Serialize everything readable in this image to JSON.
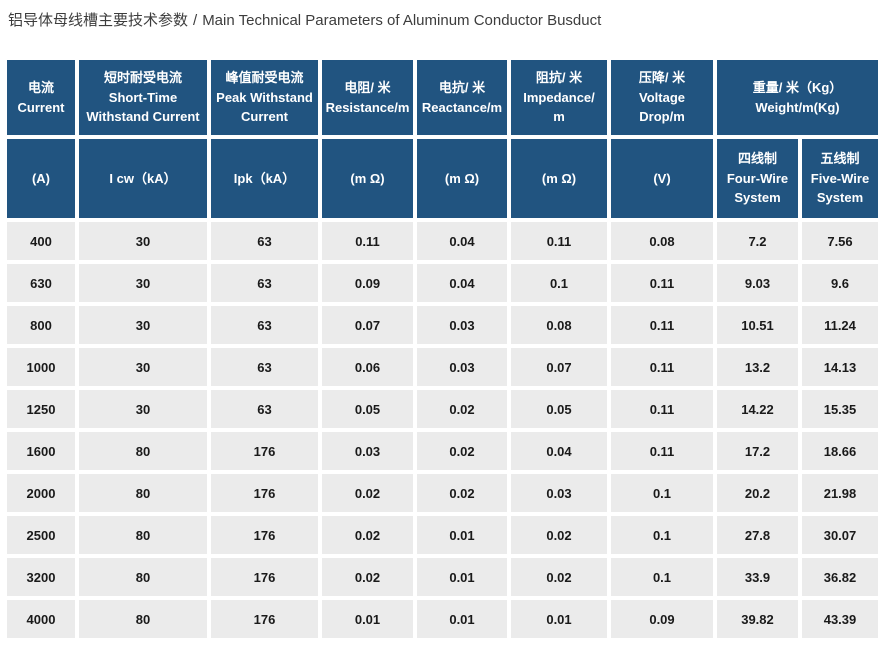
{
  "title": {
    "zh": "铝导体母线槽主要技术参数",
    "sep": "/",
    "en": "Main Technical Parameters of Aluminum Conductor Busduct"
  },
  "colors": {
    "header_bg": "#215480",
    "header_text": "#ffffff",
    "row_bg": "#ebebeb",
    "cell_text": "#1a1a1a",
    "title_text": "#3d3d3d"
  },
  "table": {
    "header_row1": [
      {
        "lines": [
          "电流",
          "Current"
        ],
        "span": 1
      },
      {
        "lines": [
          "短时耐受电流",
          "Short-Time",
          "Withstand Current"
        ],
        "span": 1
      },
      {
        "lines": [
          "峰值耐受电流",
          "Peak Withstand",
          "Current"
        ],
        "span": 1
      },
      {
        "lines": [
          "电阻/ 米",
          "Resistance/m"
        ],
        "span": 1
      },
      {
        "lines": [
          "电抗/ 米",
          "Reactance/m"
        ],
        "span": 1
      },
      {
        "lines": [
          "阻抗/ 米",
          "Impedance/",
          "m"
        ],
        "span": 1
      },
      {
        "lines": [
          "压降/ 米",
          "Voltage",
          "Drop/m"
        ],
        "span": 1
      },
      {
        "lines": [
          "重量/ 米（Kg）",
          "Weight/m(Kg)"
        ],
        "span": 2
      }
    ],
    "header_row2": [
      {
        "lines": [
          "(A)"
        ]
      },
      {
        "lines": [
          "I cw（kA）"
        ]
      },
      {
        "lines": [
          "Ipk（kA）"
        ]
      },
      {
        "lines": [
          "(m Ω)"
        ]
      },
      {
        "lines": [
          "(m Ω)"
        ]
      },
      {
        "lines": [
          "(m Ω)"
        ]
      },
      {
        "lines": [
          "(V)"
        ]
      },
      {
        "lines": [
          "四线制",
          "Four-Wire",
          "System"
        ]
      },
      {
        "lines": [
          "五线制",
          "Five-Wire",
          "System"
        ]
      }
    ],
    "rows": [
      [
        "400",
        "30",
        "63",
        "0.11",
        "0.04",
        "0.11",
        "0.08",
        "7.2",
        "7.56"
      ],
      [
        "630",
        "30",
        "63",
        "0.09",
        "0.04",
        "0.1",
        "0.11",
        "9.03",
        "9.6"
      ],
      [
        "800",
        "30",
        "63",
        "0.07",
        "0.03",
        "0.08",
        "0.11",
        "10.51",
        "11.24"
      ],
      [
        "1000",
        "30",
        "63",
        "0.06",
        "0.03",
        "0.07",
        "0.11",
        "13.2",
        "14.13"
      ],
      [
        "1250",
        "30",
        "63",
        "0.05",
        "0.02",
        "0.05",
        "0.11",
        "14.22",
        "15.35"
      ],
      [
        "1600",
        "80",
        "176",
        "0.03",
        "0.02",
        "0.04",
        "0.11",
        "17.2",
        "18.66"
      ],
      [
        "2000",
        "80",
        "176",
        "0.02",
        "0.02",
        "0.03",
        "0.1",
        "20.2",
        "21.98"
      ],
      [
        "2500",
        "80",
        "176",
        "0.02",
        "0.01",
        "0.02",
        "0.1",
        "27.8",
        "30.07"
      ],
      [
        "3200",
        "80",
        "176",
        "0.02",
        "0.01",
        "0.02",
        "0.1",
        "33.9",
        "36.82"
      ],
      [
        "4000",
        "80",
        "176",
        "0.01",
        "0.01",
        "0.01",
        "0.09",
        "39.82",
        "43.39"
      ]
    ]
  }
}
